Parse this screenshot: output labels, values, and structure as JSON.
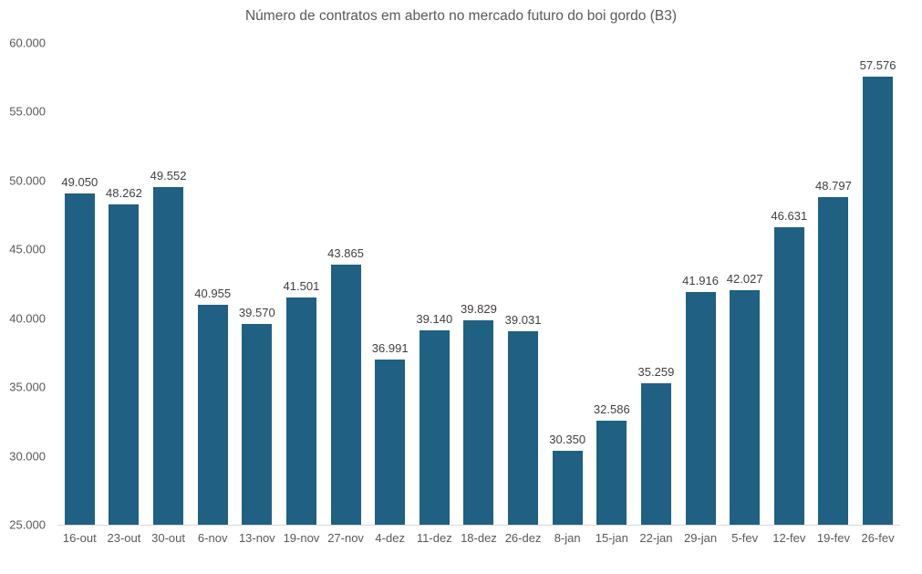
{
  "chart": {
    "title": "Número de contratos em aberto no mercado futuro do boi gordo (B3)"
  },
  "chart_data": {
    "type": "bar",
    "title": "Número de contratos em aberto no mercado futuro do boi gordo (B3)",
    "categories": [
      "16-out",
      "23-out",
      "30-out",
      "6-nov",
      "13-nov",
      "19-nov",
      "27-nov",
      "4-dez",
      "11-dez",
      "18-dez",
      "26-dez",
      "8-jan",
      "15-jan",
      "22-jan",
      "29-jan",
      "5-fev",
      "12-fev",
      "19-fev",
      "26-fev"
    ],
    "values": [
      49050,
      48262,
      49552,
      40955,
      39570,
      41501,
      43865,
      36991,
      39140,
      39829,
      39031,
      30350,
      32586,
      35259,
      41916,
      42027,
      46631,
      48797,
      57576
    ],
    "value_labels": [
      "49.050",
      "48.262",
      "49.552",
      "40.955",
      "39.570",
      "41.501",
      "43.865",
      "36.991",
      "39.140",
      "39.829",
      "39.031",
      "30.350",
      "32.586",
      "35.259",
      "41.916",
      "42.027",
      "46.631",
      "48.797",
      "57.576"
    ],
    "xlabel": "",
    "ylabel": "",
    "ylim": [
      25000,
      60000
    ],
    "yticks": [
      25000,
      30000,
      35000,
      40000,
      45000,
      50000,
      55000,
      60000
    ],
    "ytick_labels": [
      "25.000",
      "30.000",
      "35.000",
      "40.000",
      "45.000",
      "50.000",
      "55.000",
      "60.000"
    ],
    "grid": false,
    "legend_position": "none",
    "colors": {
      "bar": "#1F6083",
      "axis_line": "#D9D9D9",
      "tick_text": "#595959",
      "value_label_text": "#404040",
      "title_text": "#595959",
      "background": "#FFFFFF"
    }
  }
}
